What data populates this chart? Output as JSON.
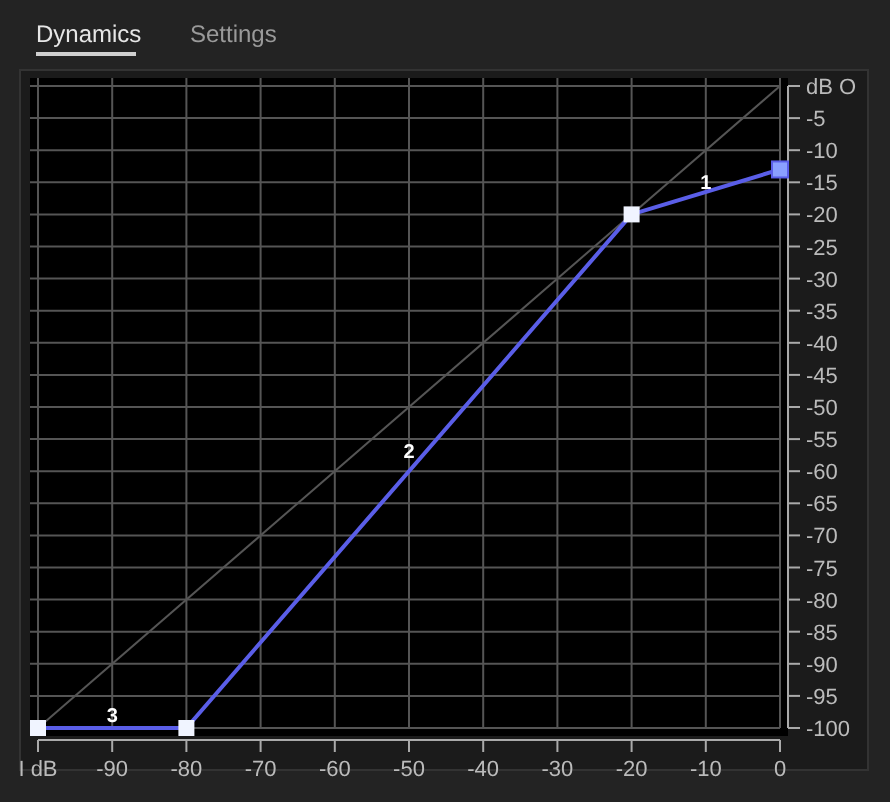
{
  "chart_data": {
    "type": "line",
    "annotations": [
      "Dynamics",
      "Settings",
      {
        "text": "1",
        "x": -10,
        "y": -16
      },
      {
        "text": "2",
        "x": -50,
        "y": -58
      },
      {
        "text": "3",
        "x": -90,
        "y": -99
      }
    ],
    "series": [
      {
        "color": "#555555",
        "x": [
          -100,
          0
        ],
        "values": [
          -100,
          0
        ]
      },
      {
        "color": "#5a5ee8",
        "x": [
          -100,
          -80,
          -20,
          0
        ],
        "values": [
          -100,
          -100,
          -20,
          -13
        ],
        "marker": "square"
      }
    ],
    "xlim": [
      -100,
      0
    ],
    "ylim": [
      -100,
      0
    ],
    "xticks": [
      {
        "value": -100,
        "label": "I dB"
      },
      -90,
      -80,
      -70,
      -60,
      -50,
      -40,
      -30,
      -20,
      -10,
      0
    ],
    "yticks": [
      {
        "value": 0,
        "label": "dB O"
      },
      -5,
      -10,
      -15,
      -20,
      -25,
      -30,
      -35,
      -40,
      -45,
      -50,
      -55,
      -60,
      -65,
      -70,
      -75,
      -80,
      -85,
      -90,
      -95,
      -100
    ],
    "grid": true,
    "line_style": "solid"
  }
}
